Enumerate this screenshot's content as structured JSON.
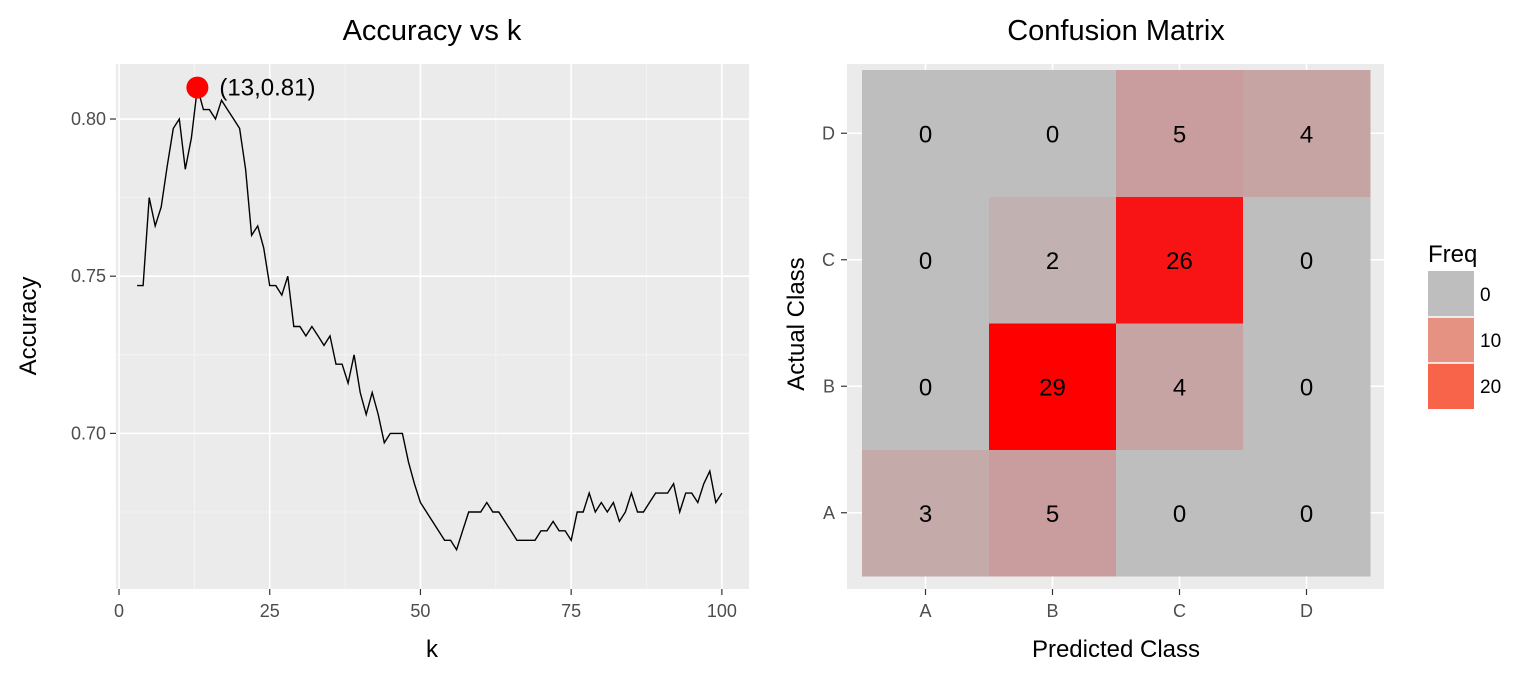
{
  "chart_data": [
    {
      "type": "line",
      "title": "Accuracy vs k",
      "xlabel": "k",
      "ylabel": "Accuracy",
      "xlim": [
        -0.5,
        104.5
      ],
      "ylim": [
        0.6505,
        0.8175
      ],
      "x_ticks": [
        0,
        25,
        50,
        75,
        100
      ],
      "x_tick_labels": [
        "0",
        "25",
        "50",
        "75",
        "100"
      ],
      "y_ticks": [
        0.7,
        0.75,
        0.8
      ],
      "y_tick_labels": [
        "0.70",
        "0.75",
        "0.80"
      ],
      "grid": true,
      "line_color": "#000000",
      "series": [
        {
          "x": [
            3,
            4,
            5,
            6,
            7,
            8,
            9,
            10,
            11,
            12,
            13,
            14,
            15,
            16,
            17,
            18,
            19,
            20,
            21,
            22,
            23,
            24,
            25,
            26,
            27,
            28,
            29,
            30,
            31,
            32,
            33,
            34,
            35,
            36,
            37,
            38,
            39,
            40,
            41,
            42,
            43,
            44,
            45,
            46,
            47,
            48,
            49,
            50,
            51,
            52,
            53,
            54,
            55,
            56,
            57,
            58,
            59,
            60,
            61,
            62,
            63,
            64,
            65,
            66,
            67,
            68,
            69,
            70,
            71,
            72,
            73,
            74,
            75,
            76,
            77,
            78,
            79,
            80,
            81,
            82,
            83,
            84,
            85,
            86,
            87,
            88,
            89,
            90,
            91,
            92,
            93,
            94,
            95,
            96,
            97,
            98,
            99,
            100
          ],
          "y": [
            0.747,
            0.747,
            0.775,
            0.766,
            0.772,
            0.785,
            0.797,
            0.8,
            0.784,
            0.794,
            0.81,
            0.803,
            0.803,
            0.8,
            0.806,
            0.803,
            0.8,
            0.797,
            0.784,
            0.763,
            0.766,
            0.759,
            0.747,
            0.747,
            0.744,
            0.75,
            0.734,
            0.734,
            0.731,
            0.734,
            0.731,
            0.728,
            0.731,
            0.722,
            0.722,
            0.716,
            0.725,
            0.713,
            0.706,
            0.713,
            0.706,
            0.697,
            0.7,
            0.7,
            0.7,
            0.691,
            0.684,
            0.678,
            0.675,
            0.672,
            0.669,
            0.666,
            0.666,
            0.663,
            0.669,
            0.675,
            0.675,
            0.675,
            0.678,
            0.675,
            0.675,
            0.672,
            0.669,
            0.666,
            0.666,
            0.666,
            0.666,
            0.669,
            0.669,
            0.672,
            0.669,
            0.669,
            0.666,
            0.675,
            0.675,
            0.681,
            0.675,
            0.678,
            0.675,
            0.678,
            0.672,
            0.675,
            0.681,
            0.675,
            0.675,
            0.678,
            0.681,
            0.681,
            0.681,
            0.684,
            0.675,
            0.681,
            0.681,
            0.678,
            0.684,
            0.688,
            0.678,
            0.681
          ]
        }
      ],
      "highlight": {
        "x": 13,
        "y": 0.81,
        "label": "(13,0.81)",
        "color": "#ff0000"
      }
    },
    {
      "type": "heatmap",
      "title": "Confusion Matrix",
      "xlabel": "Predicted Class",
      "ylabel": "Actual Class",
      "x_categories": [
        "A",
        "B",
        "C",
        "D"
      ],
      "y_categories": [
        "A",
        "B",
        "C",
        "D"
      ],
      "values": [
        [
          3,
          5,
          0,
          0
        ],
        [
          0,
          29,
          4,
          0
        ],
        [
          0,
          2,
          26,
          0
        ],
        [
          0,
          0,
          5,
          4
        ]
      ],
      "value_range": [
        0,
        29
      ],
      "color_low": "#bebebe",
      "color_high": "#ff0000",
      "legend": {
        "title": "Freq",
        "placement": "right",
        "entries": [
          {
            "label": "0",
            "color": "#bebebe"
          },
          {
            "label": "10",
            "color": "#e59282"
          },
          {
            "label": "20",
            "color": "#f8644a"
          }
        ]
      }
    }
  ]
}
